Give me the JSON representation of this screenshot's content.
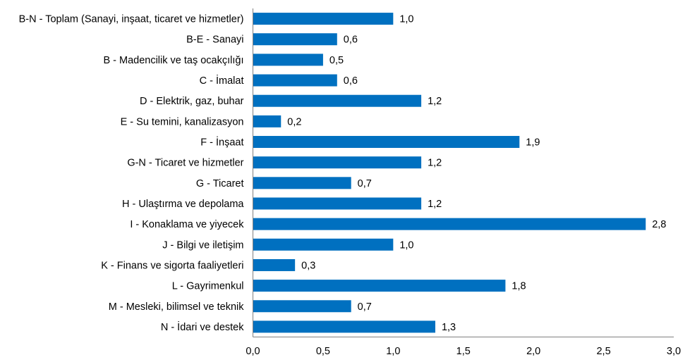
{
  "chart_data": {
    "type": "bar",
    "orientation": "horizontal",
    "title": "",
    "xlabel": "",
    "ylabel": "",
    "categories": [
      "B-N - Toplam (Sanayi, inşaat, ticaret ve hizmetler)",
      "B-E - Sanayi",
      "B - Madencilik ve taş ocakçılığı",
      "C - İmalat",
      "D - Elektrik, gaz, buhar",
      "E - Su temini, kanalizasyon",
      "F - İnşaat",
      "G-N - Ticaret ve hizmetler",
      "G - Ticaret",
      "H - Ulaştırma ve depolama",
      "I - Konaklama ve yiyecek",
      "J - Bilgi ve iletişim",
      "K - Finans ve sigorta faaliyetleri",
      "L - Gayrimenkul",
      "M - Mesleki, bilimsel ve teknik",
      "N - İdari ve destek"
    ],
    "values": [
      1.0,
      0.6,
      0.5,
      0.6,
      1.2,
      0.2,
      1.9,
      1.2,
      0.7,
      1.2,
      2.8,
      1.0,
      0.3,
      1.8,
      0.7,
      1.3
    ],
    "value_labels": [
      "1,0",
      "0,6",
      "0,5",
      "0,6",
      "1,2",
      "0,2",
      "1,9",
      "1,2",
      "0,7",
      "1,2",
      "2,8",
      "1,0",
      "0,3",
      "1,8",
      "0,7",
      "1,3"
    ],
    "xlim": [
      0,
      3.0
    ],
    "xticks": [
      0,
      0.5,
      1.0,
      1.5,
      2.0,
      2.5,
      3.0
    ],
    "xtick_labels": [
      "0,0",
      "0,5",
      "1,0",
      "1,5",
      "2,0",
      "2,5",
      "3,0"
    ],
    "grid": false,
    "legend": "none",
    "bar_color": "#0070C0",
    "axis_color": "#808080"
  }
}
